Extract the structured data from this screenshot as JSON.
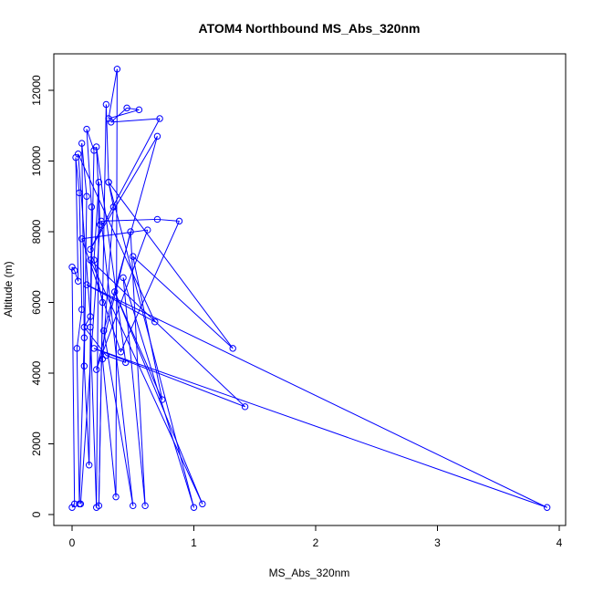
{
  "chart_data": {
    "type": "line",
    "title": "ATOM4 Northbound MS_Abs_320nm",
    "xlabel": "MS_Abs_320nm",
    "ylabel": "Altitude (m)",
    "xlim": [
      0,
      4
    ],
    "ylim": [
      0,
      12500
    ],
    "x_ticks": [
      0,
      1,
      2,
      3,
      4
    ],
    "y_ticks": [
      0,
      2000,
      4000,
      6000,
      8000,
      10000,
      12000
    ],
    "x_tick_labels": [
      "0",
      "1",
      "2",
      "3",
      "4"
    ],
    "y_tick_labels": [
      "0",
      "2000",
      "4000",
      "6000",
      "8000",
      "10000",
      "12000"
    ],
    "grid": false,
    "marker": "open-circle",
    "series_color": "#0000ff",
    "series": [
      {
        "points": [
          [
            0.0,
            200
          ],
          [
            0.02,
            300
          ],
          [
            0.0,
            7000
          ],
          [
            0.02,
            6900
          ],
          [
            0.05,
            6600
          ],
          [
            0.03,
            10100
          ],
          [
            0.06,
            9100
          ],
          [
            0.08,
            5800
          ],
          [
            0.04,
            4700
          ],
          [
            0.06,
            300
          ],
          [
            0.1,
            5000
          ],
          [
            0.08,
            10500
          ],
          [
            0.12,
            9000
          ],
          [
            0.1,
            4200
          ],
          [
            0.14,
            1400
          ],
          [
            0.16,
            8700
          ],
          [
            0.12,
            10900
          ],
          [
            0.18,
            10300
          ],
          [
            0.15,
            5300
          ],
          [
            0.2,
            200
          ],
          [
            0.22,
            9400
          ],
          [
            0.18,
            7200
          ],
          [
            0.25,
            6000
          ],
          [
            0.22,
            250
          ],
          [
            0.28,
            11600
          ],
          [
            0.3,
            9400
          ],
          [
            0.34,
            8700
          ],
          [
            0.25,
            4400
          ],
          [
            0.36,
            500
          ],
          [
            0.37,
            12600
          ],
          [
            0.3,
            11200
          ],
          [
            0.55,
            11450
          ],
          [
            0.45,
            11500
          ],
          [
            0.32,
            11100
          ],
          [
            0.72,
            11200
          ],
          [
            0.15,
            7500
          ],
          [
            0.7,
            10700
          ],
          [
            0.26,
            5200
          ],
          [
            0.5,
            250
          ],
          [
            0.24,
            8300
          ],
          [
            0.7,
            8350
          ],
          [
            0.88,
            8300
          ],
          [
            0.4,
            4600
          ],
          [
            0.08,
            7800
          ],
          [
            0.62,
            8050
          ],
          [
            0.2,
            4100
          ],
          [
            0.48,
            8000
          ],
          [
            0.6,
            250
          ],
          [
            0.42,
            6700
          ],
          [
            1.0,
            200
          ],
          [
            0.3,
            9400
          ],
          [
            1.32,
            4700
          ],
          [
            0.5,
            7300
          ],
          [
            0.74,
            3250
          ],
          [
            0.35,
            6300
          ],
          [
            1.07,
            300
          ],
          [
            0.15,
            7200
          ],
          [
            1.42,
            3050
          ],
          [
            0.18,
            4700
          ],
          [
            3.9,
            200
          ],
          [
            0.12,
            6500
          ],
          [
            0.68,
            5450
          ],
          [
            0.05,
            10200
          ],
          [
            0.15,
            5600
          ],
          [
            0.1,
            5300
          ],
          [
            0.28,
            4500
          ],
          [
            0.44,
            4300
          ],
          [
            0.2,
            10400
          ],
          [
            0.23,
            8200
          ],
          [
            0.07,
            300
          ]
        ]
      }
    ]
  }
}
